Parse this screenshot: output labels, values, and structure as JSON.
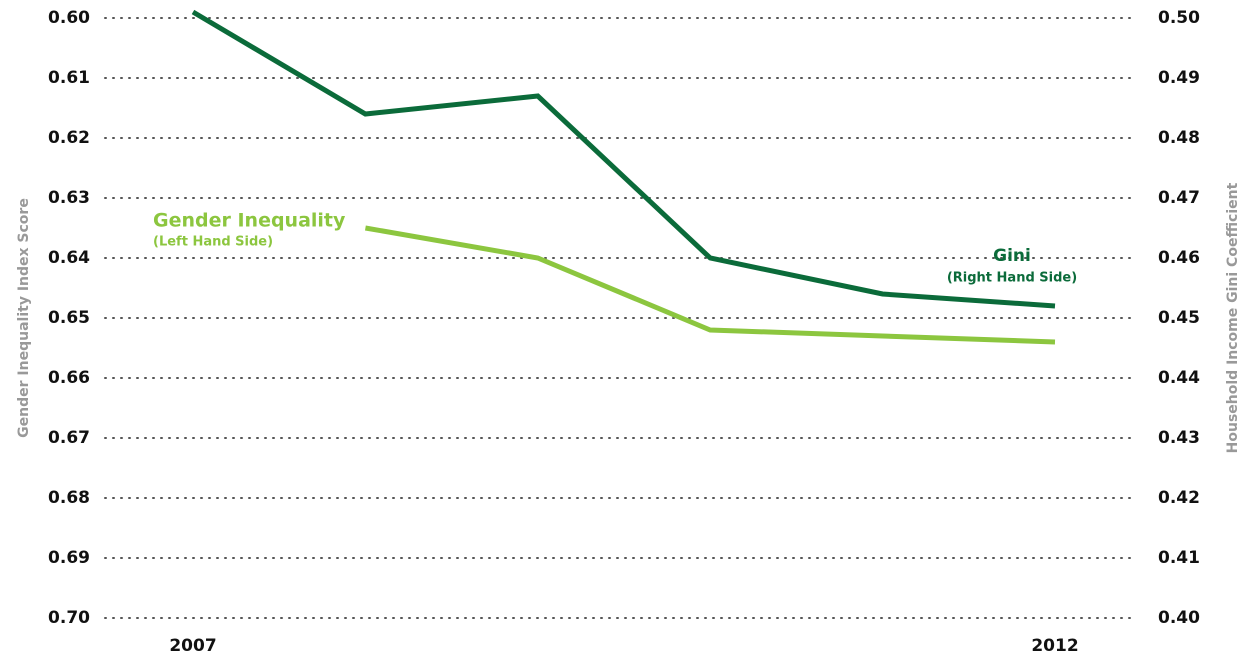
{
  "chart_data": {
    "type": "line",
    "categories": [
      "2007",
      null,
      null,
      null,
      null,
      "2012"
    ],
    "series": [
      {
        "name": "Gini",
        "color": "#0b6b3a",
        "axis": "y2",
        "values": [
          0.501,
          0.484,
          0.487,
          0.46,
          0.454,
          0.452
        ]
      },
      {
        "name": "Gender Inequality",
        "color": "#8cc63f",
        "values": [
          null,
          0.635,
          0.64,
          0.652,
          0.653,
          0.654
        ]
      }
    ],
    "annotations": [
      "(Right Hand Side)",
      "(Left Hand Side)"
    ],
    "ylabel": "Gender Inequality Index Score",
    "y2label": "Household Income Gini Coefficient",
    "ylim": [
      0.7,
      0.6
    ],
    "yticks": [
      {
        "value": 0.6,
        "label": "0.60"
      },
      0.61,
      0.62,
      0.63,
      0.64,
      0.65,
      0.66,
      0.67,
      0.68,
      0.69,
      {
        "value": 0.7,
        "label": "0.70"
      }
    ],
    "y2lim": [
      0.4,
      0.5
    ],
    "y2ticks": [
      {
        "value": 0.5,
        "label": "0.50"
      },
      0.49,
      0.48,
      0.47,
      0.46,
      0.45,
      0.44,
      0.43,
      0.42,
      0.41,
      {
        "value": 0.4,
        "label": "0.40"
      }
    ],
    "grid": true
  }
}
